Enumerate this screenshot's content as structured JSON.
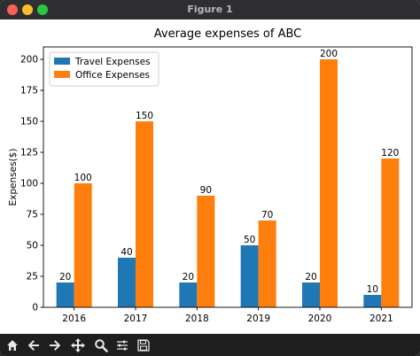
{
  "window": {
    "title": "Figure 1"
  },
  "toolbar": {
    "buttons": [
      {
        "name": "home-icon"
      },
      {
        "name": "back-arrow-icon"
      },
      {
        "name": "forward-arrow-icon"
      },
      {
        "name": "pan-move-icon"
      },
      {
        "name": "zoom-magnifier-icon"
      },
      {
        "name": "configure-subplots-icon"
      },
      {
        "name": "save-figure-icon"
      }
    ]
  },
  "chart_data": {
    "type": "bar",
    "title": "Average expenses of ABC",
    "xlabel": "",
    "ylabel": "Expenses($)",
    "categories": [
      "2016",
      "2017",
      "2018",
      "2019",
      "2020",
      "2021"
    ],
    "series": [
      {
        "name": "Travel Expenses",
        "color": "#1f77b4",
        "values": [
          20,
          40,
          20,
          50,
          20,
          10
        ]
      },
      {
        "name": "Office Expenses",
        "color": "#ff7f0e",
        "values": [
          100,
          150,
          90,
          70,
          200,
          120
        ]
      }
    ],
    "ylim": [
      0,
      210
    ],
    "yticks": [
      0,
      25,
      50,
      75,
      100,
      125,
      150,
      175,
      200
    ],
    "legend": "upper-left",
    "grid": false
  }
}
